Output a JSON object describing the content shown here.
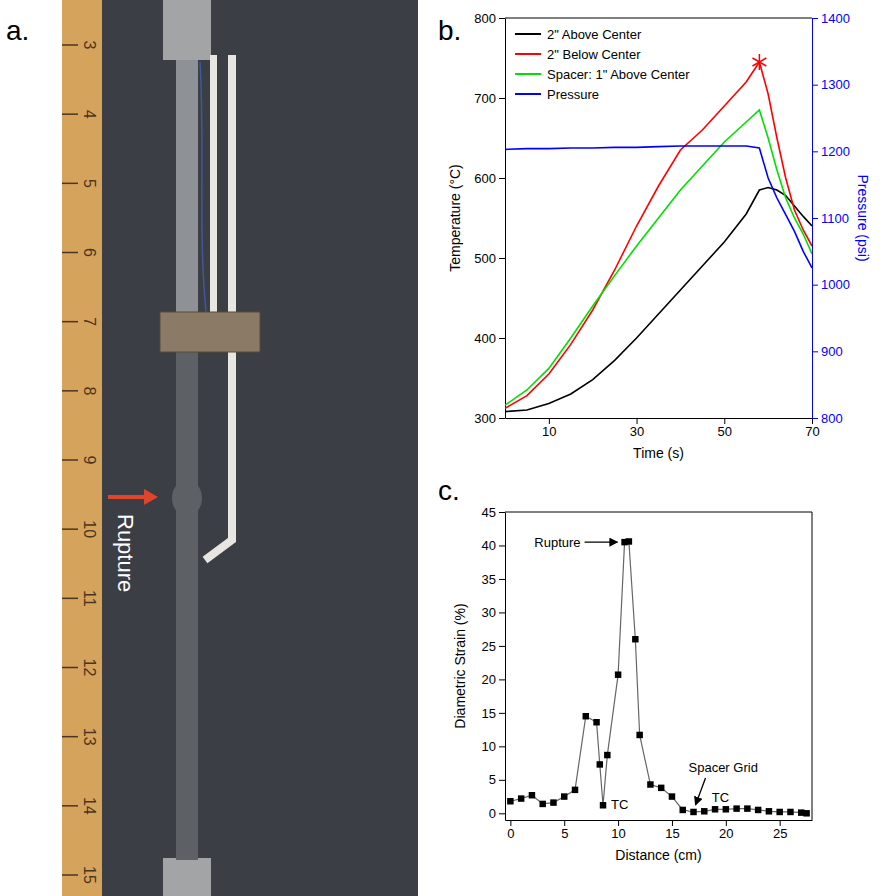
{
  "photo": {
    "panel": "a.",
    "label": "Rupture",
    "ruler_ticks": [
      3,
      4,
      5,
      6,
      7,
      8,
      9,
      10,
      11,
      12,
      13,
      14,
      15
    ]
  },
  "chart_data": [
    {
      "type": "line",
      "panel": "b.",
      "x_label": "Time (s)",
      "y_label": "Temperature (°C)",
      "y2_label": "Pressure (psi)",
      "x": [
        0,
        5,
        10,
        15,
        20,
        25,
        30,
        35,
        40,
        45,
        50,
        55,
        58,
        60,
        62,
        64,
        66,
        68,
        70
      ],
      "series": [
        {
          "name": "2\" Above Center",
          "color": "#000000",
          "values": [
            308,
            310,
            318,
            330,
            348,
            372,
            400,
            430,
            460,
            490,
            520,
            555,
            585,
            588,
            585,
            578,
            565,
            552,
            540
          ]
        },
        {
          "name": "2\" Below Center",
          "color": "#ff0000",
          "values": [
            312,
            328,
            355,
            392,
            435,
            485,
            540,
            590,
            635,
            660,
            690,
            720,
            745,
            705,
            650,
            600,
            560,
            535,
            515
          ]
        },
        {
          "name": "Spacer: 1\" Above Center",
          "color": "#00e000",
          "values": [
            316,
            335,
            362,
            400,
            440,
            478,
            515,
            550,
            585,
            615,
            645,
            670,
            685,
            650,
            610,
            575,
            550,
            530,
            505
          ]
        },
        {
          "name": "Pressure",
          "color": "#0000ff",
          "axis": "y2",
          "values": [
            1203,
            1204,
            1204,
            1205,
            1205,
            1206,
            1206,
            1207,
            1208,
            1208,
            1208,
            1208,
            1205,
            1160,
            1130,
            1105,
            1080,
            1050,
            1025
          ]
        }
      ],
      "markers": [
        {
          "x": 58,
          "y": 745,
          "color": "#ff0000",
          "marker": "asterisk"
        }
      ],
      "xlim": [
        0,
        70
      ],
      "xticks": [
        10,
        30,
        50,
        70
      ],
      "ylim": [
        300,
        800
      ],
      "yticks": [
        300,
        400,
        500,
        600,
        700,
        800
      ],
      "y2lim": [
        800,
        1400
      ],
      "y2ticks": [
        800,
        900,
        1000,
        1100,
        1200,
        1300,
        1400
      ],
      "legend": "upper left"
    },
    {
      "type": "line",
      "panel": "c.",
      "x_label": "Distance (cm)",
      "y_label": "Diametric Strain (%)",
      "x": [
        0,
        1,
        2,
        3,
        4,
        5,
        6,
        7,
        8,
        8.3,
        8.6,
        9,
        10,
        10.6,
        11,
        11.6,
        12,
        13,
        14,
        15,
        16,
        17,
        18,
        19,
        20,
        21,
        22,
        23,
        24,
        25,
        26,
        27,
        27.5
      ],
      "values": [
        1.8,
        2.2,
        2.7,
        1.4,
        1.6,
        2.5,
        3.5,
        14.5,
        13.6,
        7.3,
        1.2,
        8.7,
        20.7,
        40.5,
        40.6,
        26,
        11.7,
        4.3,
        3.8,
        2.5,
        0.5,
        0.2,
        0.3,
        0.6,
        0.6,
        0.7,
        0.7,
        0.5,
        0.3,
        0.2,
        0.2,
        0.1,
        0.0
      ],
      "color": "#000000",
      "marker": "square",
      "line_style": "solid",
      "annotations": [
        {
          "text": "Rupture",
          "x": 10.6,
          "y": 40.5,
          "marker": "arrow"
        },
        {
          "text": "TC",
          "x": 8.6,
          "y": 1.2
        },
        {
          "text": "Spacer Grid",
          "x": 17,
          "y": 0.2,
          "marker": "arrow"
        },
        {
          "text": "TC",
          "x": 19.5,
          "y": 2.5
        }
      ],
      "xlim": [
        -0.5,
        28
      ],
      "xticks": [
        0,
        5,
        10,
        15,
        20,
        25
      ],
      "ylim": [
        -1,
        45
      ],
      "yticks": [
        0,
        5,
        10,
        15,
        20,
        25,
        30,
        35,
        40,
        45
      ]
    }
  ]
}
